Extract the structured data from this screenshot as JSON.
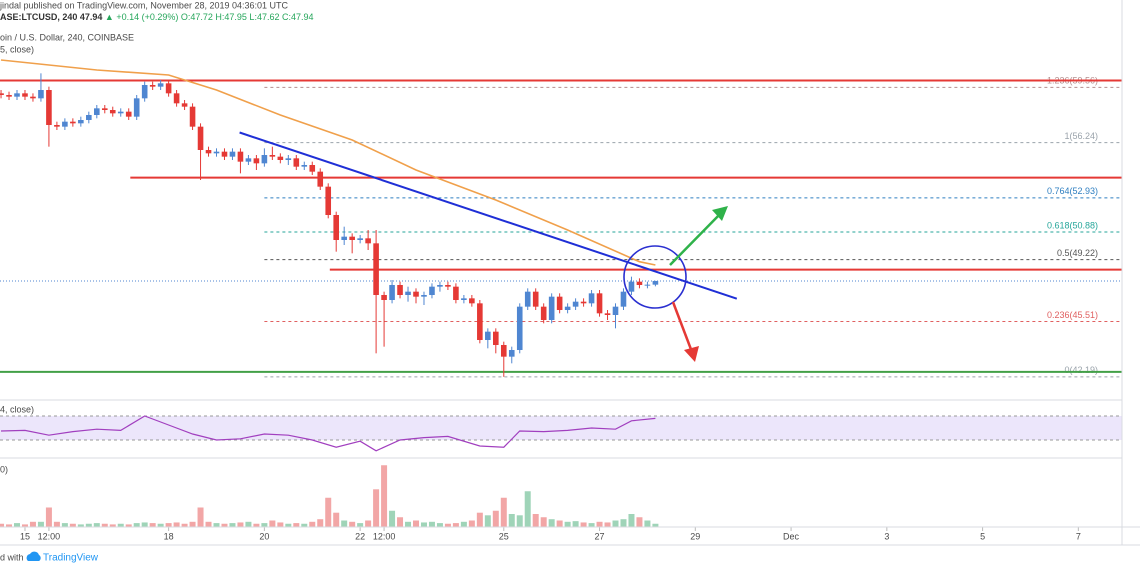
{
  "header": {
    "author": "jindal published on TradingView.com, November 28, 2019 04:36:01 UTC",
    "symbol": "ASE:LTCUSD, 240",
    "last": "47.94",
    "change": "▲ +0.14 (+0.29%)",
    "ohlc": "O:47.72 H:47.95 L:47.62 C:47.94"
  },
  "footer": {
    "made_with": "d with",
    "brand": "TradingView"
  },
  "chart_data": [
    {
      "type": "candlestick",
      "title": "oin / U.S. Dollar, 240, COINBASE",
      "up_color": "#4f86d1",
      "down_color": "#e53935",
      "xlim": [
        -3.13,
        137.47
      ],
      "ylim": [
        40.8,
        63.0
      ],
      "xticks": [
        {
          "value": 0,
          "label": "15"
        },
        {
          "value": 3,
          "label": "12:00"
        },
        {
          "value": 18,
          "label": "18"
        },
        {
          "value": 30,
          "label": "20"
        },
        {
          "value": 42,
          "label": "22"
        },
        {
          "value": 45,
          "label": "12:00"
        },
        {
          "value": 60,
          "label": "25"
        },
        {
          "value": 72,
          "label": "27"
        },
        {
          "value": 84,
          "label": "29"
        },
        {
          "value": 96,
          "label": "Dec"
        },
        {
          "value": 108,
          "label": "3"
        },
        {
          "value": 120,
          "label": "5"
        },
        {
          "value": 132,
          "label": "7"
        }
      ],
      "x": [
        -3,
        -2,
        -1,
        0,
        1,
        2,
        3,
        4,
        5,
        6,
        7,
        8,
        9,
        10,
        11,
        12,
        13,
        14,
        15,
        16,
        17,
        18,
        19,
        20,
        21,
        22,
        23,
        24,
        25,
        26,
        27,
        28,
        29,
        30,
        31,
        32,
        33,
        34,
        35,
        36,
        37,
        38,
        39,
        40,
        41,
        42,
        43,
        44,
        45,
        46,
        47,
        48,
        49,
        50,
        51,
        52,
        53,
        54,
        55,
        56,
        57,
        58,
        59,
        60,
        61,
        62,
        63,
        64,
        65,
        66,
        67,
        68,
        69,
        70,
        71,
        72,
        73,
        74,
        75,
        76,
        77,
        78,
        79
      ],
      "open": [
        59.2,
        59.1,
        59.0,
        59.2,
        59.0,
        58.9,
        59.4,
        57.3,
        57.2,
        57.5,
        57.4,
        57.6,
        57.9,
        58.3,
        58.2,
        58.0,
        58.1,
        57.8,
        58.9,
        59.7,
        59.6,
        59.8,
        59.2,
        58.6,
        58.4,
        57.2,
        55.8,
        55.6,
        55.7,
        55.4,
        55.7,
        55.1,
        55.3,
        55.0,
        55.5,
        55.4,
        55.2,
        55.3,
        54.8,
        54.9,
        54.5,
        53.6,
        51.9,
        50.4,
        50.6,
        50.4,
        50.5,
        50.2,
        47.1,
        46.8,
        47.7,
        47.1,
        47.3,
        47.0,
        47.1,
        47.6,
        47.7,
        47.6,
        46.8,
        46.9,
        46.6,
        44.4,
        44.9,
        44.1,
        43.4,
        43.8,
        46.4,
        47.3,
        46.4,
        45.6,
        47.0,
        46.2,
        46.4,
        46.7,
        46.6,
        47.2,
        46.0,
        45.9,
        46.4,
        47.3,
        47.9,
        47.7,
        47.72
      ],
      "high": [
        59.4,
        59.3,
        59.4,
        59.4,
        59.2,
        60.4,
        59.6,
        57.5,
        57.7,
        57.7,
        57.8,
        58.1,
        58.5,
        58.5,
        58.4,
        58.3,
        58.3,
        59.1,
        59.9,
        59.9,
        60.0,
        60.0,
        59.4,
        58.8,
        58.6,
        57.4,
        56.0,
        55.9,
        55.9,
        55.9,
        55.9,
        55.5,
        55.5,
        55.9,
        56.0,
        55.6,
        55.5,
        55.5,
        55.1,
        55.1,
        54.7,
        53.8,
        52.1,
        51.2,
        50.8,
        50.7,
        51.0,
        51.0,
        47.3,
        48.0,
        47.9,
        47.6,
        47.5,
        47.3,
        47.8,
        47.9,
        47.9,
        47.8,
        47.1,
        47.1,
        46.8,
        45.1,
        45.1,
        44.3,
        44.0,
        46.6,
        47.5,
        47.5,
        46.6,
        47.2,
        47.2,
        46.6,
        46.9,
        46.9,
        47.4,
        47.4,
        46.2,
        46.6,
        47.5,
        48.2,
        48.1,
        47.9,
        47.95
      ],
      "low": [
        58.9,
        58.8,
        58.8,
        58.8,
        58.7,
        58.7,
        56.0,
        57.0,
        57.0,
        57.2,
        57.2,
        57.4,
        57.7,
        58.0,
        57.8,
        57.8,
        57.6,
        57.6,
        58.7,
        59.4,
        59.4,
        59.0,
        58.4,
        58.2,
        57.0,
        54.0,
        55.4,
        55.4,
        55.2,
        55.2,
        54.4,
        54.9,
        54.6,
        54.8,
        55.2,
        55.0,
        54.9,
        54.6,
        54.6,
        54.3,
        53.4,
        51.7,
        49.7,
        50.1,
        49.6,
        50.2,
        49.8,
        43.6,
        44.0,
        46.6,
        46.9,
        46.7,
        46.6,
        46.5,
        46.9,
        47.3,
        47.4,
        46.6,
        46.6,
        46.4,
        44.2,
        43.9,
        43.6,
        42.19,
        43.0,
        43.6,
        46.2,
        46.2,
        45.4,
        45.4,
        46.0,
        46.0,
        46.2,
        46.4,
        46.4,
        45.8,
        45.6,
        45.1,
        46.2,
        47.1,
        47.5,
        47.5,
        47.62
      ],
      "close": [
        59.1,
        59.0,
        59.2,
        59.0,
        58.9,
        59.4,
        57.3,
        57.2,
        57.5,
        57.4,
        57.6,
        57.9,
        58.3,
        58.2,
        58.0,
        58.1,
        57.8,
        58.9,
        59.7,
        59.6,
        59.8,
        59.2,
        58.6,
        58.4,
        57.2,
        55.8,
        55.6,
        55.7,
        55.4,
        55.7,
        55.1,
        55.3,
        55.0,
        55.5,
        55.4,
        55.2,
        55.3,
        54.8,
        54.9,
        54.5,
        53.6,
        51.9,
        50.4,
        50.6,
        50.4,
        50.5,
        50.2,
        47.1,
        46.8,
        47.7,
        47.1,
        47.3,
        47.0,
        47.1,
        47.6,
        47.7,
        47.6,
        46.8,
        46.9,
        46.6,
        44.4,
        44.9,
        44.1,
        43.4,
        43.8,
        46.4,
        47.3,
        46.4,
        45.6,
        47.0,
        46.2,
        46.4,
        46.7,
        46.6,
        47.2,
        46.0,
        45.9,
        46.4,
        47.3,
        47.9,
        47.7,
        47.72,
        47.94
      ],
      "series": [
        {
          "name": "5, close)",
          "color": "#f0a04b",
          "x": [
            -3,
            9,
            18,
            24,
            32,
            41,
            49,
            59,
            68,
            77,
            79
          ],
          "values": [
            61.2,
            60.6,
            60.3,
            59.4,
            57.9,
            56.4,
            54.6,
            52.8,
            51.0,
            49.1,
            48.9
          ]
        }
      ],
      "levels": [
        {
          "value": 59.97,
          "x_start": -3.13,
          "color": "#e53935"
        },
        {
          "value": 54.14,
          "x_start": 13.2,
          "color": "#e53935"
        },
        {
          "value": 48.62,
          "x_start": 38.2,
          "color": "#e53935"
        },
        {
          "value": 42.49,
          "x_start": -3.13,
          "color": "#43a047"
        }
      ],
      "price_line": {
        "value": 47.94,
        "color": "#4f86d1"
      },
      "trendline": {
        "x": [
          26.9,
          89.2
        ],
        "values": [
          56.85,
          46.88
        ],
        "color": "#1f2fd6"
      },
      "fib": {
        "x_start": 30,
        "levels": [
          {
            "value": 59.56,
            "label": "1.236(59.56)",
            "color": "#b58f8f"
          },
          {
            "value": 56.24,
            "label": "1(56.24)",
            "color": "#9aa3ab"
          },
          {
            "value": 52.93,
            "label": "0.764(52.93)",
            "color": "#2f7fc1"
          },
          {
            "value": 50.88,
            "label": "0.618(50.88)",
            "color": "#26a69a"
          },
          {
            "value": 49.22,
            "label": "0.5(49.22)",
            "color": "#555555"
          },
          {
            "value": 45.51,
            "label": "0.236(45.51)",
            "color": "#e06060"
          },
          {
            "value": 42.19,
            "label": "0(42.19)",
            "color": "#9aa3ab"
          }
        ]
      }
    },
    {
      "type": "line",
      "title": "4, close)",
      "ylim": [
        0,
        100
      ],
      "band": [
        30,
        70
      ],
      "band_color": "#ece6fb",
      "series": [
        {
          "color": "#a13fbf",
          "x": [
            -3,
            0,
            3,
            6,
            9,
            12,
            15,
            18,
            21,
            24,
            27,
            30,
            33,
            36,
            39,
            42,
            44,
            47,
            50,
            53,
            57,
            60,
            62,
            65,
            68,
            71,
            74,
            76,
            79
          ],
          "values": [
            45,
            46,
            38,
            44,
            48,
            46,
            70,
            55,
            40,
            30,
            32,
            40,
            38,
            30,
            18,
            28,
            12,
            30,
            34,
            36,
            20,
            18,
            45,
            44,
            46,
            50,
            48,
            62,
            66
          ]
        }
      ]
    },
    {
      "type": "bar",
      "title": "0)",
      "ylim": [
        0,
        100
      ],
      "up_color": "#9fd4b8",
      "down_color": "#f2a6a6",
      "x": [
        -3,
        -2,
        -1,
        0,
        1,
        2,
        3,
        4,
        5,
        6,
        7,
        8,
        9,
        10,
        11,
        12,
        13,
        14,
        15,
        16,
        17,
        18,
        19,
        20,
        21,
        22,
        23,
        24,
        25,
        26,
        27,
        28,
        29,
        30,
        31,
        32,
        33,
        34,
        35,
        36,
        37,
        38,
        39,
        40,
        41,
        42,
        43,
        44,
        45,
        46,
        47,
        48,
        49,
        50,
        51,
        52,
        53,
        54,
        55,
        56,
        57,
        58,
        59,
        60,
        61,
        62,
        63,
        64,
        65,
        66,
        67,
        68,
        69,
        70,
        71,
        72,
        73,
        74,
        75,
        76,
        77,
        78,
        79
      ],
      "values": [
        5,
        4,
        6,
        4,
        8,
        8,
        30,
        8,
        6,
        5,
        4,
        5,
        6,
        5,
        4,
        5,
        4,
        6,
        7,
        6,
        5,
        6,
        7,
        5,
        8,
        30,
        8,
        6,
        5,
        6,
        7,
        8,
        5,
        6,
        10,
        7,
        5,
        6,
        5,
        8,
        12,
        45,
        22,
        10,
        8,
        6,
        10,
        58,
        95,
        25,
        15,
        8,
        10,
        7,
        8,
        6,
        5,
        6,
        8,
        10,
        22,
        18,
        25,
        45,
        20,
        18,
        55,
        20,
        15,
        12,
        10,
        8,
        9,
        7,
        6,
        8,
        7,
        10,
        12,
        20,
        15,
        10,
        5
      ]
    }
  ]
}
